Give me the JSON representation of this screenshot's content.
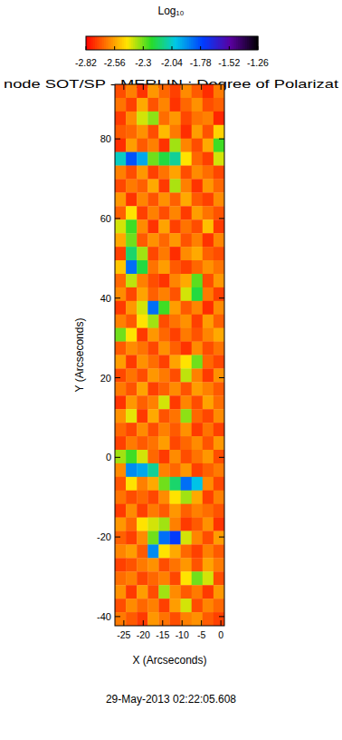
{
  "chart_data": {
    "type": "heatmap",
    "title": "node SOT/SP - MERLIN : Degree of Polarizat",
    "subtitle": "29-May-2013 02:22:05.608",
    "xlabel": "X (Arcseconds)",
    "ylabel": "Y (Arcseconds)",
    "xlim": [
      -27.3,
      0.9
    ],
    "ylim": [
      -42.3,
      93.7
    ],
    "xticks": [
      -25,
      -20,
      -15,
      -10,
      -5,
      0
    ],
    "yticks": [
      -40,
      -20,
      0,
      20,
      40,
      60,
      80
    ],
    "colorbar": {
      "label": "Log₁₀",
      "range": [
        -2.82,
        -1.26
      ],
      "ticks": [
        -2.82,
        -2.56,
        -2.3,
        -2.04,
        -1.78,
        -1.52,
        -1.26
      ]
    },
    "x": [
      -25.89,
      -23.07,
      -20.25,
      -17.43,
      -14.61,
      -11.79,
      -8.97,
      -6.15,
      -3.33,
      -0.51
    ],
    "y": [
      92.0,
      88.6,
      85.2,
      81.8,
      78.4,
      75.0,
      71.6,
      68.2,
      64.8,
      61.4,
      58.0,
      54.6,
      51.2,
      47.8,
      44.4,
      41.0,
      37.6,
      34.2,
      30.8,
      27.4,
      24.0,
      20.6,
      17.2,
      13.8,
      10.4,
      7.0,
      3.6,
      0.2,
      -3.2,
      -6.6,
      -10.0,
      -13.4,
      -16.8,
      -20.2,
      -23.6,
      -27.0,
      -30.4,
      -33.8,
      -37.2,
      -40.6
    ],
    "z": [
      [
        -2.7,
        -2.62,
        -2.74,
        -2.58,
        -2.66,
        -2.72,
        -2.6,
        -2.68,
        -2.75,
        -2.63
      ],
      [
        -2.64,
        -2.72,
        -2.55,
        -2.69,
        -2.61,
        -2.74,
        -2.66,
        -2.59,
        -2.7,
        -2.67
      ],
      [
        -2.73,
        -2.6,
        -2.4,
        -2.33,
        -2.65,
        -2.58,
        -2.71,
        -2.64,
        -2.62,
        -2.76
      ],
      [
        -2.68,
        -2.66,
        -2.59,
        -2.7,
        -2.52,
        -2.63,
        -2.75,
        -2.57,
        -2.69,
        -2.48
      ],
      [
        -2.75,
        -2.57,
        -2.68,
        -2.62,
        -2.74,
        -2.35,
        -2.61,
        -2.7,
        -2.55,
        -2.25
      ],
      [
        -2.05,
        -1.8,
        -1.95,
        -2.3,
        -2.2,
        -2.1,
        -2.45,
        -2.66,
        -2.72,
        -2.4
      ],
      [
        -2.62,
        -2.7,
        -2.58,
        -2.72,
        -2.64,
        -2.56,
        -2.7,
        -2.6,
        -2.65,
        -2.71
      ],
      [
        -2.71,
        -2.63,
        -2.67,
        -2.55,
        -2.73,
        -2.36,
        -2.62,
        -2.74,
        -2.58,
        -2.66
      ],
      [
        -2.58,
        -2.74,
        -2.61,
        -2.69,
        -2.59,
        -2.67,
        -2.55,
        -2.68,
        -2.72,
        -2.6
      ],
      [
        -2.67,
        -2.45,
        -2.72,
        -2.62,
        -2.7,
        -2.61,
        -2.73,
        -2.57,
        -2.64,
        -2.69
      ],
      [
        -2.4,
        -2.25,
        -2.6,
        -2.74,
        -2.56,
        -2.72,
        -2.64,
        -2.7,
        -2.51,
        -2.73
      ],
      [
        -2.55,
        -2.3,
        -2.68,
        -2.59,
        -2.66,
        -2.58,
        -2.69,
        -2.62,
        -2.74,
        -2.61
      ],
      [
        -2.72,
        -2.15,
        -2.35,
        -2.71,
        -2.63,
        -2.75,
        -2.6,
        -2.55,
        -2.67,
        -2.7
      ],
      [
        -2.5,
        -1.85,
        -2.2,
        -2.64,
        -2.57,
        -2.68,
        -2.72,
        -2.66,
        -2.59,
        -2.64
      ],
      [
        -2.66,
        -2.38,
        -2.62,
        -2.7,
        -2.74,
        -2.61,
        -2.55,
        -2.28,
        -2.7,
        -2.58
      ],
      [
        -2.6,
        -2.71,
        -2.56,
        -2.67,
        -2.62,
        -2.69,
        -2.4,
        -2.2,
        -2.63,
        -2.72
      ],
      [
        -2.73,
        -2.58,
        -2.4,
        -1.85,
        -2.25,
        -2.57,
        -2.68,
        -2.61,
        -2.75,
        -2.6
      ],
      [
        -2.62,
        -2.68,
        -2.45,
        -2.35,
        -2.7,
        -2.64,
        -2.59,
        -2.72,
        -2.57,
        -2.67
      ],
      [
        -2.3,
        -2.45,
        -2.73,
        -2.58,
        -2.66,
        -2.72,
        -2.63,
        -2.69,
        -2.61,
        -2.55
      ],
      [
        -2.68,
        -2.6,
        -2.64,
        -2.71,
        -2.59,
        -2.67,
        -2.74,
        -2.6,
        -2.7,
        -2.64
      ],
      [
        -2.57,
        -2.73,
        -2.59,
        -2.65,
        -2.72,
        -2.56,
        -2.45,
        -2.3,
        -2.66,
        -2.71
      ],
      [
        -2.71,
        -2.64,
        -2.7,
        -2.58,
        -2.63,
        -2.7,
        -2.38,
        -2.62,
        -2.73,
        -2.59
      ],
      [
        -2.63,
        -2.69,
        -2.56,
        -2.72,
        -2.67,
        -2.6,
        -2.69,
        -2.57,
        -2.62,
        -2.68
      ],
      [
        -2.74,
        -2.58,
        -2.67,
        -2.62,
        -2.4,
        -2.73,
        -2.61,
        -2.7,
        -2.56,
        -2.65
      ],
      [
        -2.59,
        -2.42,
        -2.73,
        -2.55,
        -2.69,
        -2.64,
        -2.33,
        -2.66,
        -2.71,
        -2.6
      ],
      [
        -2.66,
        -2.71,
        -2.6,
        -2.7,
        -2.62,
        -2.68,
        -2.59,
        -2.73,
        -2.64,
        -2.72
      ],
      [
        -2.72,
        -2.63,
        -2.68,
        -2.64,
        -2.57,
        -2.71,
        -2.66,
        -2.6,
        -2.69,
        -2.58
      ],
      [
        -2.35,
        -2.25,
        -2.4,
        -2.66,
        -2.73,
        -2.6,
        -2.7,
        -2.64,
        -2.58,
        -2.7
      ],
      [
        -2.6,
        -1.9,
        -1.95,
        -2.1,
        -2.62,
        -2.66,
        -2.58,
        -2.72,
        -2.67,
        -2.63
      ],
      [
        -2.69,
        -2.45,
        -2.62,
        -2.55,
        -2.3,
        -2.15,
        -1.85,
        -2.0,
        -2.6,
        -2.71
      ],
      [
        -2.64,
        -2.7,
        -2.66,
        -2.71,
        -2.6,
        -2.45,
        -2.35,
        -2.55,
        -2.72,
        -2.62
      ],
      [
        -2.73,
        -2.6,
        -2.72,
        -2.63,
        -2.68,
        -2.58,
        -2.67,
        -2.62,
        -2.65,
        -2.69
      ],
      [
        -2.58,
        -2.66,
        -2.45,
        -2.4,
        -2.35,
        -2.62,
        -2.73,
        -2.68,
        -2.59,
        -2.74
      ],
      [
        -2.67,
        -2.72,
        -2.6,
        -2.3,
        -1.85,
        -1.75,
        -2.4,
        -2.61,
        -2.7,
        -2.57
      ],
      [
        -2.61,
        -2.57,
        -2.68,
        -1.9,
        -2.45,
        -2.55,
        -2.66,
        -2.72,
        -2.62,
        -2.68
      ],
      [
        -2.72,
        -2.69,
        -2.63,
        -2.59,
        -2.7,
        -2.64,
        -2.58,
        -2.69,
        -2.56,
        -2.63
      ],
      [
        -2.65,
        -2.62,
        -2.71,
        -2.66,
        -2.62,
        -2.71,
        -2.45,
        -2.3,
        -2.4,
        -2.7
      ],
      [
        -2.59,
        -2.73,
        -2.57,
        -2.7,
        -2.35,
        -2.6,
        -2.68,
        -2.63,
        -2.73,
        -2.58
      ],
      [
        -2.7,
        -2.6,
        -2.66,
        -2.62,
        -2.72,
        -2.57,
        -2.4,
        -2.7,
        -2.61,
        -2.66
      ],
      [
        -2.63,
        -2.68,
        -2.73,
        -2.58,
        -2.64,
        -2.7,
        -2.62,
        -2.59,
        -2.68,
        -2.72
      ]
    ]
  }
}
